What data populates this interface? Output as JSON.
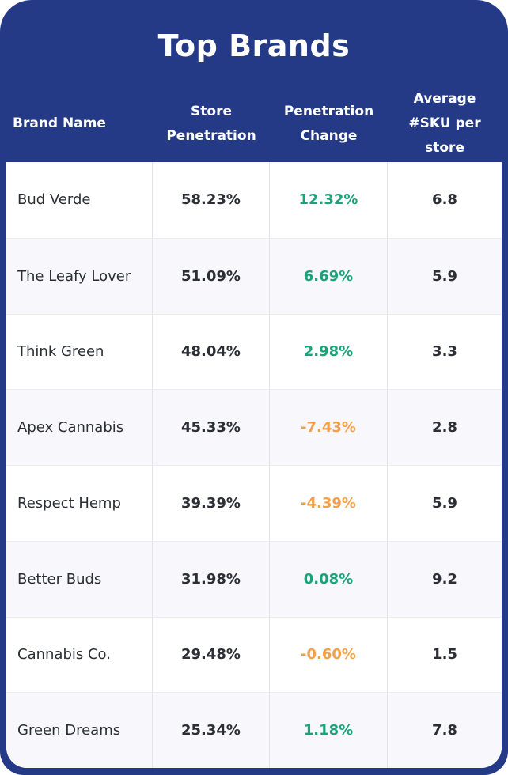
{
  "card": {
    "title": "Top Brands",
    "colors": {
      "header_bg": "#243A87",
      "title_text": "#FFFFFF",
      "positive": "#18A478",
      "negative": "#F2A048",
      "text": "#2B2E35",
      "alt_row_bg": "#F8F8FC"
    }
  },
  "table": {
    "columns": [
      {
        "id": "brand",
        "label": "Brand Name",
        "align": "left"
      },
      {
        "id": "penetration",
        "label": "Store Penetration",
        "align": "center"
      },
      {
        "id": "change",
        "label": "Penetration Change",
        "align": "center"
      },
      {
        "id": "sku",
        "label": "Average #SKU per store",
        "align": "center"
      }
    ],
    "rows": [
      {
        "brand": "Bud Verde",
        "penetration": "58.23%",
        "change": "12.32%",
        "change_sign": "positive",
        "sku": "6.8"
      },
      {
        "brand": "The Leafy Lover",
        "penetration": "51.09%",
        "change": "6.69%",
        "change_sign": "positive",
        "sku": "5.9"
      },
      {
        "brand": "Think Green",
        "penetration": "48.04%",
        "change": "2.98%",
        "change_sign": "positive",
        "sku": "3.3"
      },
      {
        "brand": "Apex Cannabis",
        "penetration": "45.33%",
        "change": "-7.43%",
        "change_sign": "negative",
        "sku": "2.8"
      },
      {
        "brand": "Respect Hemp",
        "penetration": "39.39%",
        "change": "-4.39%",
        "change_sign": "negative",
        "sku": "5.9"
      },
      {
        "brand": "Better Buds",
        "penetration": "31.98%",
        "change": "0.08%",
        "change_sign": "positive",
        "sku": "9.2"
      },
      {
        "brand": "Cannabis Co.",
        "penetration": "29.48%",
        "change": "-0.60%",
        "change_sign": "negative",
        "sku": "1.5"
      },
      {
        "brand": "Green Dreams",
        "penetration": "25.34%",
        "change": "1.18%",
        "change_sign": "positive",
        "sku": "7.8"
      }
    ]
  },
  "chart_data": {
    "type": "table",
    "title": "Top Brands",
    "columns": [
      "Brand Name",
      "Store Penetration",
      "Penetration Change",
      "Average #SKU per store"
    ],
    "rows": [
      [
        "Bud Verde",
        "58.23%",
        "12.32%",
        "6.8"
      ],
      [
        "The Leafy Lover",
        "51.09%",
        "6.69%",
        "5.9"
      ],
      [
        "Think Green",
        "48.04%",
        "2.98%",
        "3.3"
      ],
      [
        "Apex Cannabis",
        "45.33%",
        "-7.43%",
        "2.8"
      ],
      [
        "Respect Hemp",
        "39.39%",
        "-4.39%",
        "5.9"
      ],
      [
        "Better Buds",
        "31.98%",
        "0.08%",
        "9.2"
      ],
      [
        "Cannabis Co.",
        "29.48%",
        "-0.60%",
        "1.5"
      ],
      [
        "Green Dreams",
        "25.34%",
        "1.18%",
        "7.8"
      ]
    ],
    "value_color_rule": "penetration change positive = green, negative = orange"
  }
}
